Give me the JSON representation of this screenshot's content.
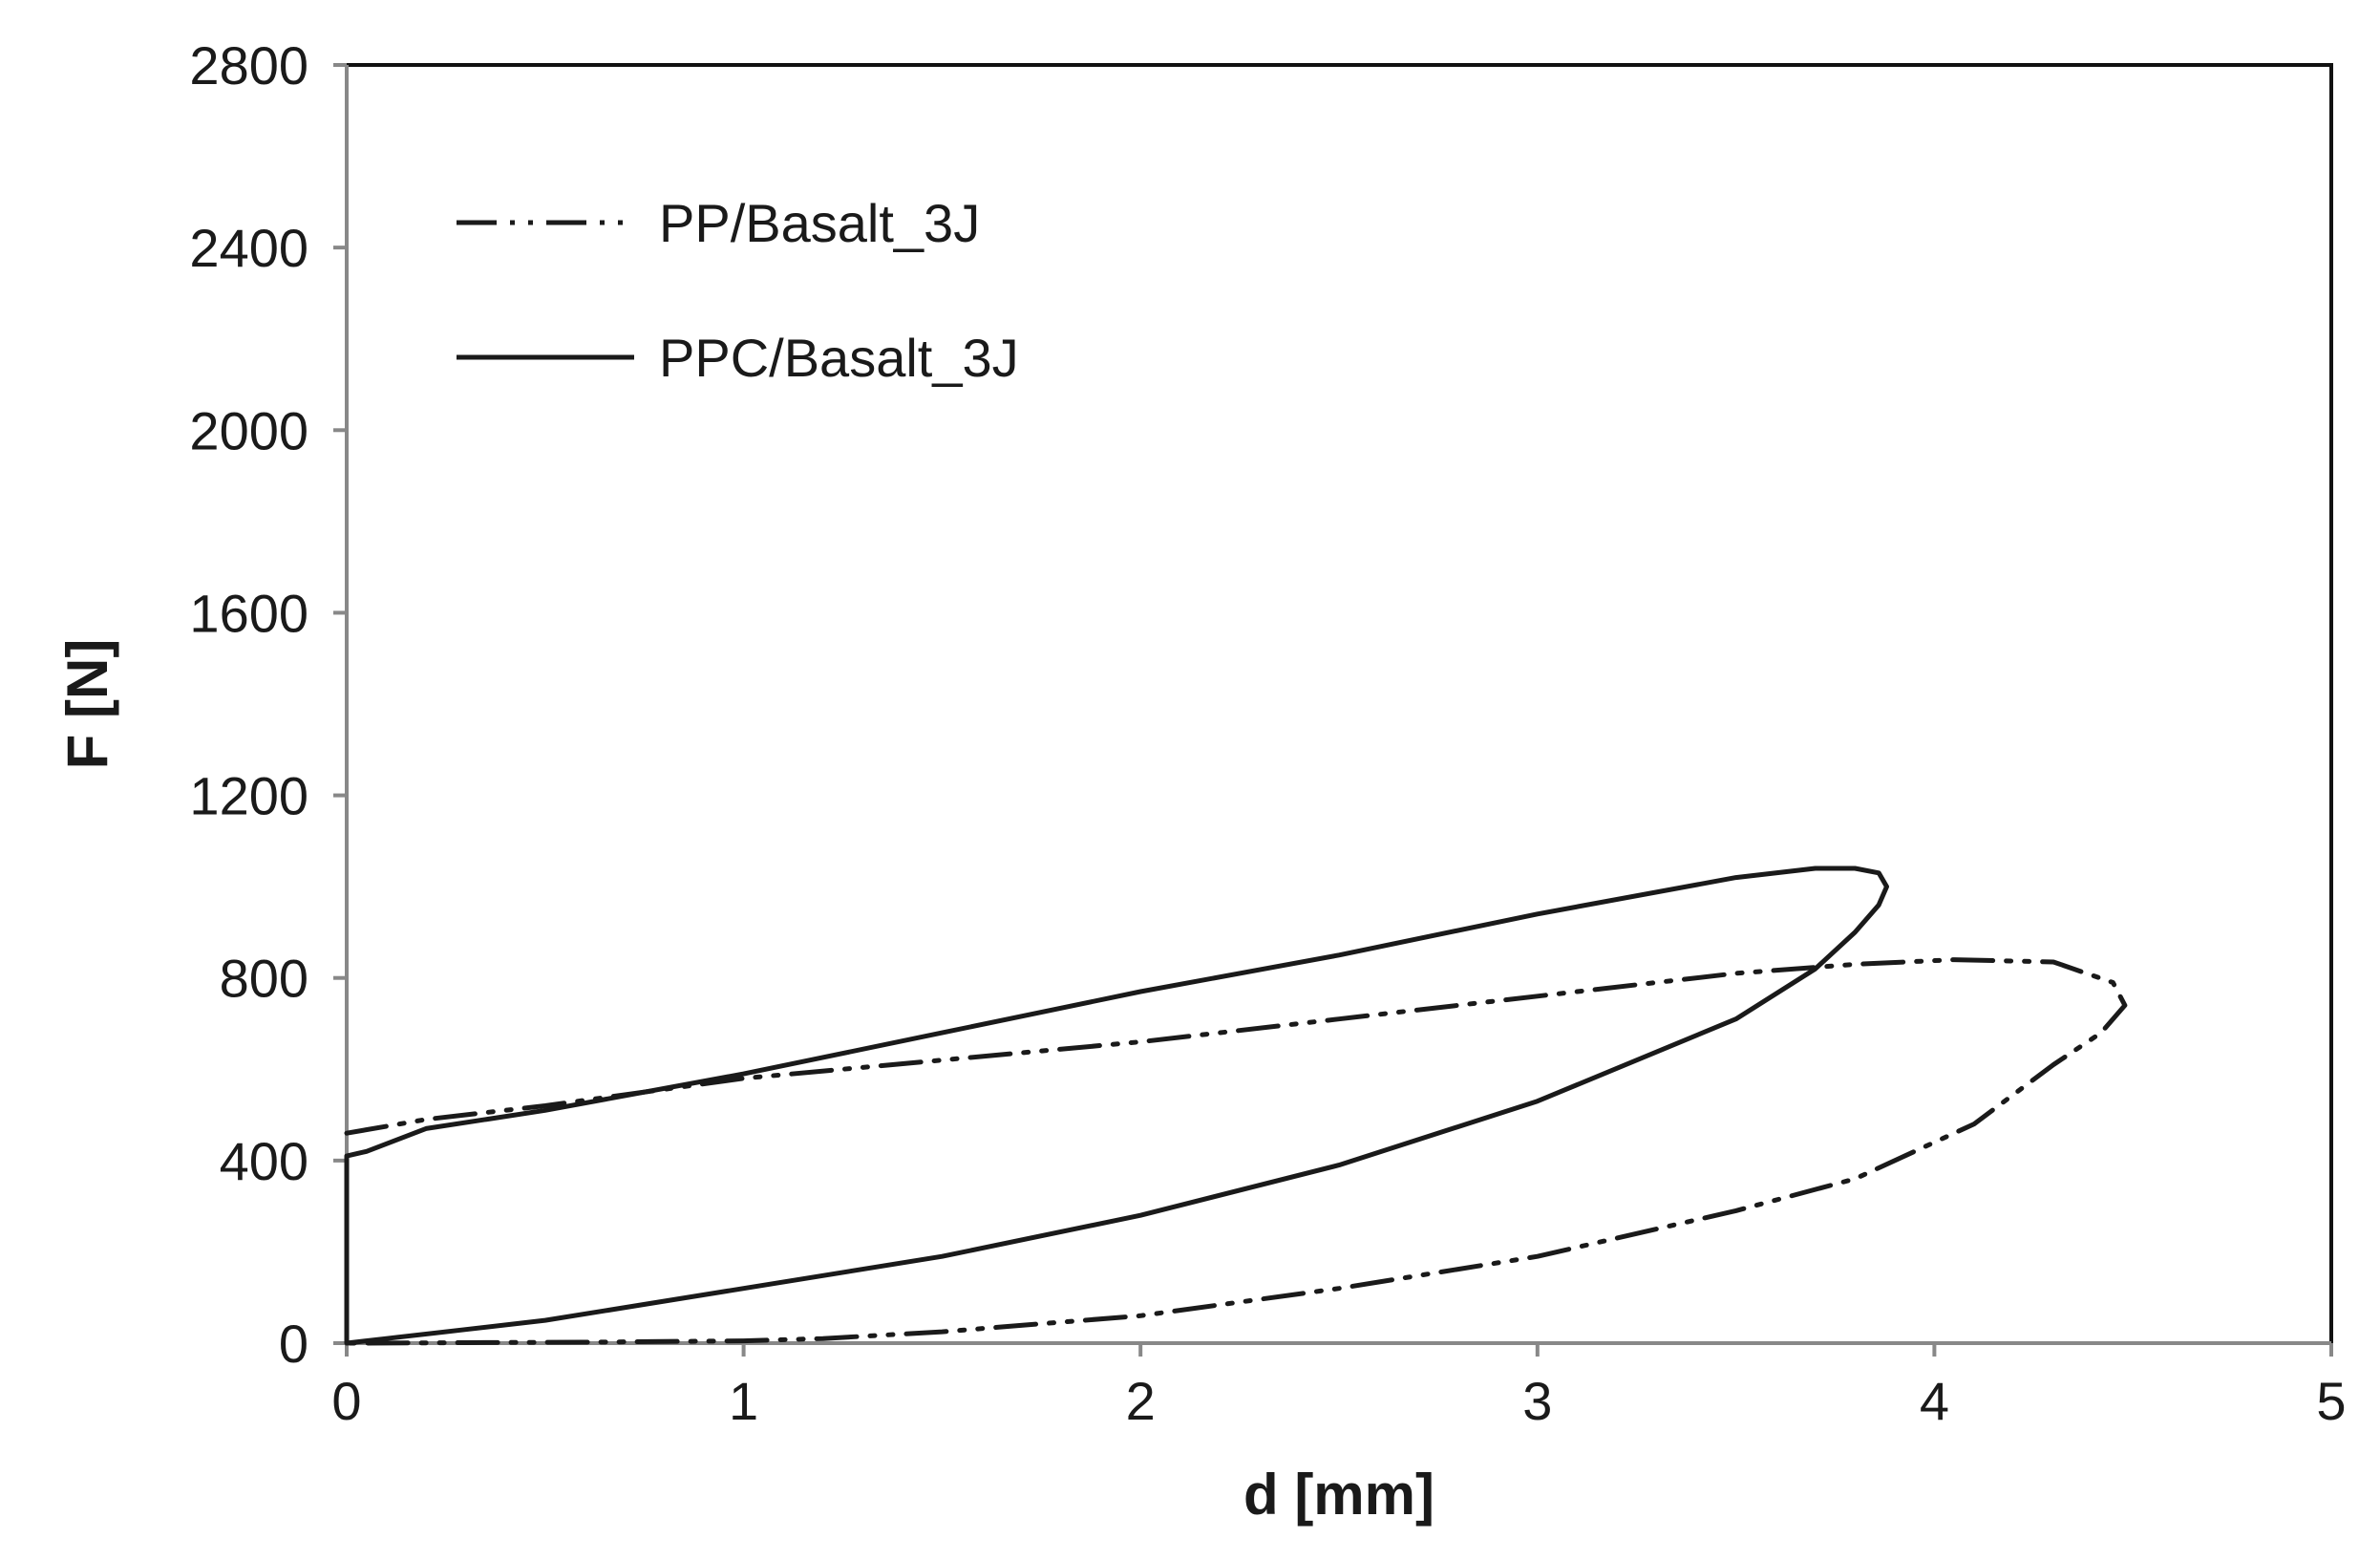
{
  "chart_data": {
    "type": "line",
    "xlabel": "d [mm]",
    "ylabel": "F [N]",
    "xlim": [
      0,
      5
    ],
    "ylim": [
      0,
      2800
    ],
    "xticks": [
      "0",
      "1",
      "2",
      "3",
      "4",
      "5"
    ],
    "yticks": [
      "0",
      "400",
      "800",
      "1200",
      "1600",
      "2000",
      "2400",
      "2800"
    ],
    "grid": false,
    "legend_position": "top-left",
    "series": [
      {
        "name": "PP/Basalt_3J",
        "line_style": "dash-dot-dot",
        "color": "#1a1a1a",
        "x": [
          0.0,
          0.2,
          0.5,
          1.0,
          1.5,
          2.0,
          2.5,
          3.0,
          3.5,
          3.8,
          4.05,
          4.3,
          4.45,
          4.48,
          4.42,
          4.3,
          4.1,
          3.8,
          3.5,
          3.0,
          2.5,
          2.0,
          1.5,
          1.2,
          1.0,
          0.6,
          0.3,
          0.05,
          0.0
        ],
        "y": [
          460,
          490,
          520,
          580,
          620,
          660,
          710,
          760,
          810,
          830,
          840,
          835,
          790,
          740,
          680,
          610,
          480,
          360,
          290,
          190,
          120,
          60,
          25,
          10,
          5,
          2,
          1,
          0,
          0
        ]
      },
      {
        "name": "PPC/Basalt_3J",
        "line_style": "solid",
        "color": "#1a1a1a",
        "x": [
          0.0,
          0.0,
          0.05,
          0.2,
          0.5,
          1.0,
          1.5,
          2.0,
          2.5,
          3.0,
          3.5,
          3.7,
          3.8,
          3.86,
          3.88,
          3.86,
          3.8,
          3.7,
          3.5,
          3.0,
          2.5,
          2.0,
          1.5,
          1.0,
          0.5,
          0.3,
          0.1,
          0.0
        ],
        "y": [
          0,
          410,
          420,
          470,
          510,
          590,
          680,
          770,
          850,
          940,
          1020,
          1040,
          1040,
          1030,
          1000,
          960,
          900,
          820,
          710,
          530,
          390,
          280,
          190,
          120,
          50,
          30,
          10,
          0
        ]
      }
    ]
  }
}
